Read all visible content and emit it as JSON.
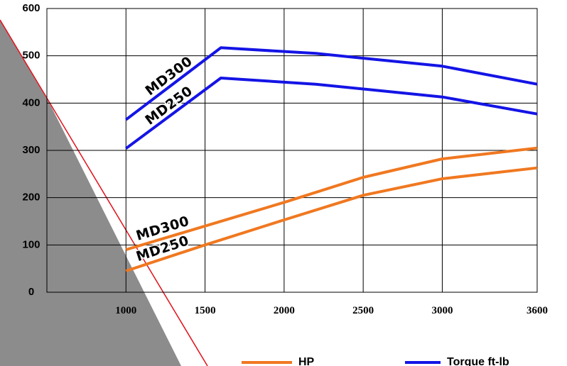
{
  "colors": {
    "background_wedge": "#8c8c8c",
    "wedge_edge": "#e0101a",
    "hp_series": "#f07820",
    "torque_series": "#1414e6",
    "grid": "#000000"
  },
  "chart_data": {
    "type": "line",
    "title": "",
    "xlabel": "",
    "ylabel": "",
    "xlim": [
      500,
      3600
    ],
    "ylim": [
      0,
      600
    ],
    "x_ticks": [
      1000,
      1500,
      2000,
      2500,
      3000,
      3600
    ],
    "y_ticks": [
      0,
      100,
      200,
      300,
      400,
      500,
      600
    ],
    "x_tick_labels": [
      "1000",
      "1500",
      "2000",
      "2500",
      "3000",
      "3600"
    ],
    "y_tick_labels": [
      "0",
      "100",
      "200",
      "300",
      "400",
      "500",
      "600"
    ],
    "grid": true,
    "legend_position": "bottom-right",
    "legend": [
      {
        "label": "HP",
        "color": "#f07820"
      },
      {
        "label": "Torque ft-lb",
        "color": "#1414e6"
      }
    ],
    "series": [
      {
        "group": "Torque ft-lb",
        "label": "MD300",
        "color": "#1414e6",
        "points": [
          [
            1000,
            365
          ],
          [
            1600,
            517
          ],
          [
            2200,
            505
          ],
          [
            3000,
            478
          ],
          [
            3600,
            440
          ]
        ]
      },
      {
        "group": "Torque ft-lb",
        "label": "MD250",
        "color": "#1414e6",
        "points": [
          [
            1000,
            304
          ],
          [
            1600,
            453
          ],
          [
            2200,
            440
          ],
          [
            3000,
            413
          ],
          [
            3600,
            377
          ]
        ]
      },
      {
        "group": "HP",
        "label": "MD300",
        "color": "#f07820",
        "points": [
          [
            1000,
            90
          ],
          [
            1500,
            140
          ],
          [
            2000,
            190
          ],
          [
            2500,
            243
          ],
          [
            3000,
            282
          ],
          [
            3600,
            305
          ]
        ]
      },
      {
        "group": "HP",
        "label": "MD250",
        "color": "#f07820",
        "points": [
          [
            1000,
            45
          ],
          [
            1500,
            100
          ],
          [
            2000,
            153
          ],
          [
            2500,
            205
          ],
          [
            3000,
            240
          ],
          [
            3600,
            263
          ]
        ]
      }
    ]
  }
}
